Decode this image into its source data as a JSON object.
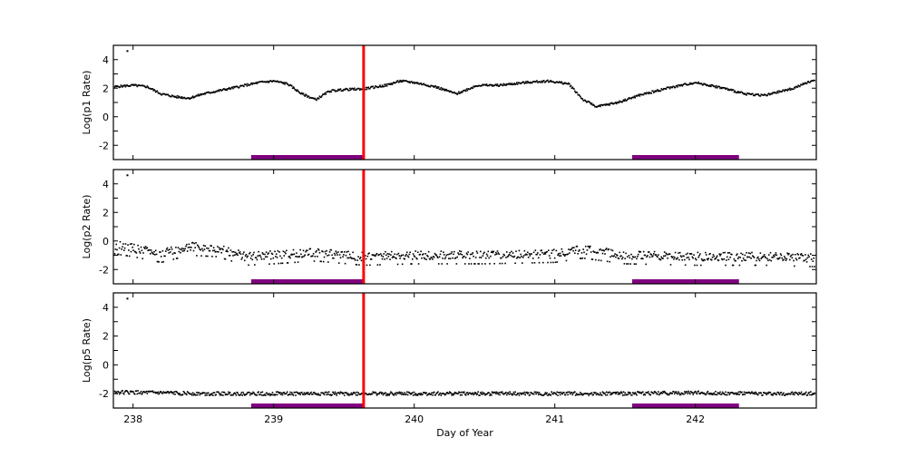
{
  "chart_data": [
    {
      "type": "scatter",
      "title": "",
      "xlabel": "",
      "ylabel": "Log(p1 Rate)",
      "xlim": [
        237.86,
        242.86
      ],
      "ylim": [
        -3,
        5
      ],
      "yticks": [
        -2,
        0,
        2,
        4
      ],
      "xticks": [
        238,
        239,
        240,
        241,
        242
      ],
      "series": [
        {
          "name": "p1",
          "x": [
            237.87,
            238.0,
            238.1,
            238.2,
            238.3,
            238.4,
            238.5,
            238.7,
            238.9,
            239.0,
            239.1,
            239.2,
            239.3,
            239.4,
            239.5,
            239.64,
            239.8,
            239.9,
            240.0,
            240.15,
            240.3,
            240.45,
            240.6,
            240.8,
            240.95,
            241.1,
            241.2,
            241.3,
            241.45,
            241.6,
            241.8,
            242.0,
            242.2,
            242.35,
            242.5,
            242.7,
            242.85
          ],
          "y": [
            2.1,
            2.2,
            2.1,
            1.6,
            1.4,
            1.3,
            1.6,
            2.0,
            2.4,
            2.5,
            2.3,
            1.6,
            1.2,
            1.8,
            1.9,
            1.95,
            2.2,
            2.5,
            2.4,
            2.1,
            1.6,
            2.2,
            2.2,
            2.4,
            2.5,
            2.3,
            1.2,
            0.7,
            1.0,
            1.5,
            2.0,
            2.4,
            2.0,
            1.6,
            1.5,
            2.0,
            2.6
          ]
        }
      ],
      "annotations": [
        {
          "type": "vline",
          "x": 239.64,
          "color": "#ff0000"
        },
        {
          "type": "hbar",
          "x": [
            238.84,
            239.64
          ],
          "color": "#800080"
        },
        {
          "type": "hbar",
          "x": [
            241.55,
            242.31
          ],
          "color": "#800080"
        }
      ]
    },
    {
      "type": "scatter",
      "ylabel": "Log(p2 Rate)",
      "xlim": [
        237.86,
        242.86
      ],
      "ylim": [
        -3,
        5
      ],
      "yticks": [
        -2,
        0,
        2,
        4
      ],
      "series": [
        {
          "name": "p2",
          "x": [
            237.87,
            238.0,
            238.2,
            238.4,
            238.6,
            238.8,
            239.0,
            239.3,
            239.64,
            240.0,
            240.5,
            241.0,
            241.2,
            241.5,
            242.0,
            242.5,
            242.85
          ],
          "y": [
            -0.3,
            -0.5,
            -0.9,
            -0.4,
            -0.5,
            -1.1,
            -1.0,
            -0.8,
            -1.1,
            -1.0,
            -1.0,
            -0.9,
            -0.6,
            -1.0,
            -1.1,
            -1.1,
            -1.2
          ]
        }
      ],
      "annotations": [
        {
          "type": "vline",
          "x": 239.64,
          "color": "#ff0000"
        },
        {
          "type": "hbar",
          "x": [
            238.84,
            239.64
          ],
          "color": "#800080"
        },
        {
          "type": "hbar",
          "x": [
            241.55,
            242.31
          ],
          "color": "#800080"
        }
      ]
    },
    {
      "type": "scatter",
      "xlabel": "Day of Year",
      "ylabel": "Log(p5 Rate)",
      "xlim": [
        237.86,
        242.86
      ],
      "ylim": [
        -3,
        5
      ],
      "yticks": [
        -2,
        0,
        2,
        4
      ],
      "xticks": [
        238,
        239,
        240,
        241,
        242
      ],
      "series": [
        {
          "name": "p5",
          "x": [
            237.87,
            238.5,
            239.0,
            239.64,
            240.0,
            240.5,
            241.0,
            241.5,
            242.0,
            242.5,
            242.85
          ],
          "y": [
            -1.9,
            -2.0,
            -2.0,
            -2.0,
            -2.0,
            -2.0,
            -2.0,
            -2.0,
            -1.95,
            -2.0,
            -2.0
          ]
        }
      ],
      "annotations": [
        {
          "type": "vline",
          "x": 239.64,
          "color": "#ff0000"
        },
        {
          "type": "hbar",
          "x": [
            238.84,
            239.64
          ],
          "color": "#800080"
        },
        {
          "type": "hbar",
          "x": [
            241.55,
            242.31
          ],
          "color": "#800080"
        }
      ]
    }
  ],
  "labels": {
    "p1_ylabel": "Log(p1 Rate)",
    "p2_ylabel": "Log(p2 Rate)",
    "p5_ylabel": "Log(p5 Rate)",
    "xlabel": "Day of Year",
    "yticks": [
      "4",
      "2",
      "0",
      "-2"
    ],
    "xticks": [
      "238",
      "239",
      "240",
      "241",
      "242"
    ]
  },
  "colors": {
    "event_line": "#ff0000",
    "interval_bar": "#800080",
    "data": "#000000"
  }
}
